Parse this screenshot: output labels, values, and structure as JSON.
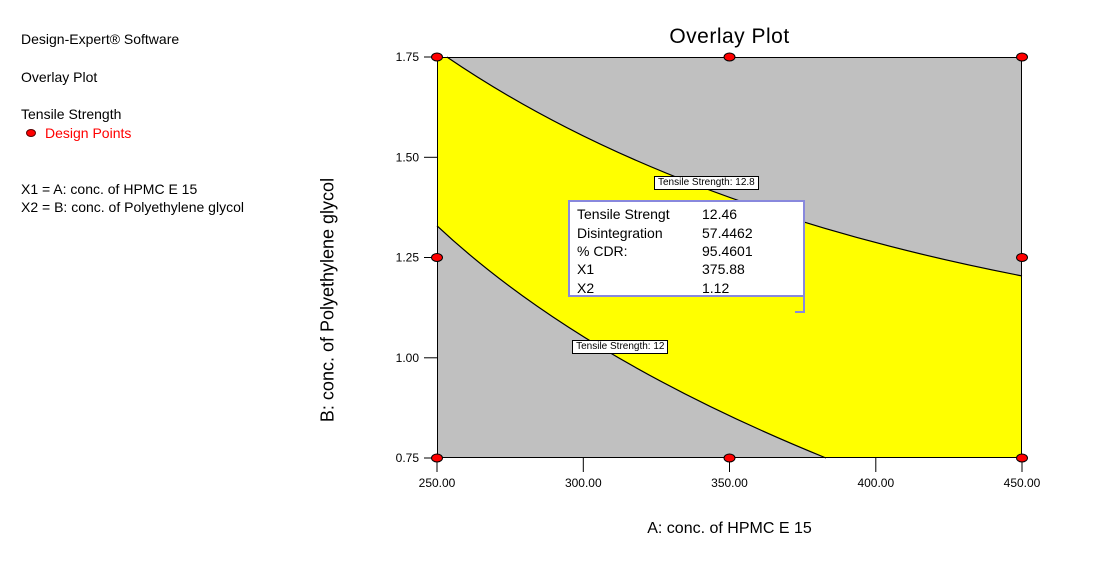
{
  "sidebar": {
    "app_title": "Design-Expert® Software",
    "plot_type": "Overlay Plot",
    "response": "Tensile Strength",
    "design_points_label": "Design Points",
    "x1_assignment": "X1 = A: conc. of HPMC E 15",
    "x2_assignment": "X2 = B: conc. of Polyethylene glycol"
  },
  "chart_data": {
    "type": "area",
    "subtype": "overlay-contour-plot",
    "title": "Overlay Plot",
    "xlabel": "A: conc. of HPMC E 15",
    "ylabel": "B: conc. of Polyethylene glycol",
    "xlim": [
      250,
      450
    ],
    "ylim": [
      0.75,
      1.75
    ],
    "grid": false,
    "x_ticks": {
      "values": [
        250,
        300,
        350,
        400,
        450
      ],
      "labels": [
        "250.00",
        "300.00",
        "350.00",
        "400.00",
        "450.00"
      ]
    },
    "y_ticks": {
      "values": [
        1.75,
        1.5,
        1.25,
        1.0,
        0.75
      ],
      "labels": [
        "1.75",
        "1.50",
        "1.25",
        "1.00",
        "0.75"
      ]
    },
    "colors": {
      "feasible_region": "#ffff00",
      "infeasible_region": "#c0c0c0",
      "design_point": "#ff0000",
      "contour_line": "#000000",
      "flag_border": "#8888dd"
    },
    "contours": [
      {
        "name": "Tensile Strength: 12.8",
        "label_pos": {
          "x": 324.2,
          "y": 1.453
        },
        "bezier": {
          "start": {
            "x": 253.4,
            "y": 1.75
          },
          "control": {
            "x": 328.6,
            "y": 1.376
          },
          "end": {
            "x": 450,
            "y": 1.204
          }
        },
        "points": [
          [
            253.4,
            1.75
          ],
          [
            272.9,
            1.66
          ],
          [
            293.9,
            1.58
          ],
          [
            316.3,
            1.5
          ],
          [
            340.2,
            1.43
          ],
          [
            365.5,
            1.36
          ],
          [
            392.2,
            1.3
          ],
          [
            420.4,
            1.25
          ],
          [
            450,
            1.2
          ]
        ]
      },
      {
        "name": "Tensile Strength: 12",
        "label_pos": {
          "x": 296.2,
          "y": 1.044
        },
        "bezier": {
          "start": {
            "x": 250,
            "y": 1.329
          },
          "control": {
            "x": 297.9,
            "y": 1.002
          },
          "end": {
            "x": 383,
            "y": 0.75
          }
        },
        "points": [
          [
            250,
            1.33
          ],
          [
            262.5,
            1.25
          ],
          [
            276.3,
            1.17
          ],
          [
            291.1,
            1.09
          ],
          [
            307.2,
            1.02
          ],
          [
            324.4,
            0.95
          ],
          [
            342.7,
            0.88
          ],
          [
            362.3,
            0.81
          ],
          [
            383,
            0.75
          ]
        ]
      }
    ],
    "design_points": [
      [
        250,
        0.75
      ],
      [
        250,
        1.25
      ],
      [
        250,
        1.75
      ],
      [
        350,
        1.75
      ],
      [
        450,
        1.75
      ],
      [
        450,
        1.25
      ],
      [
        450,
        0.75
      ],
      [
        350,
        0.75
      ]
    ],
    "flag_box": {
      "rows": [
        {
          "label": "Tensile Strengt",
          "value": "12.46"
        },
        {
          "label": "Disintegration",
          "value": "57.4462"
        },
        {
          "label": "% CDR:",
          "value": "95.4601"
        },
        {
          "label": "X1",
          "value": "375.88"
        },
        {
          "label": "X2",
          "value": "1.12"
        }
      ]
    }
  }
}
